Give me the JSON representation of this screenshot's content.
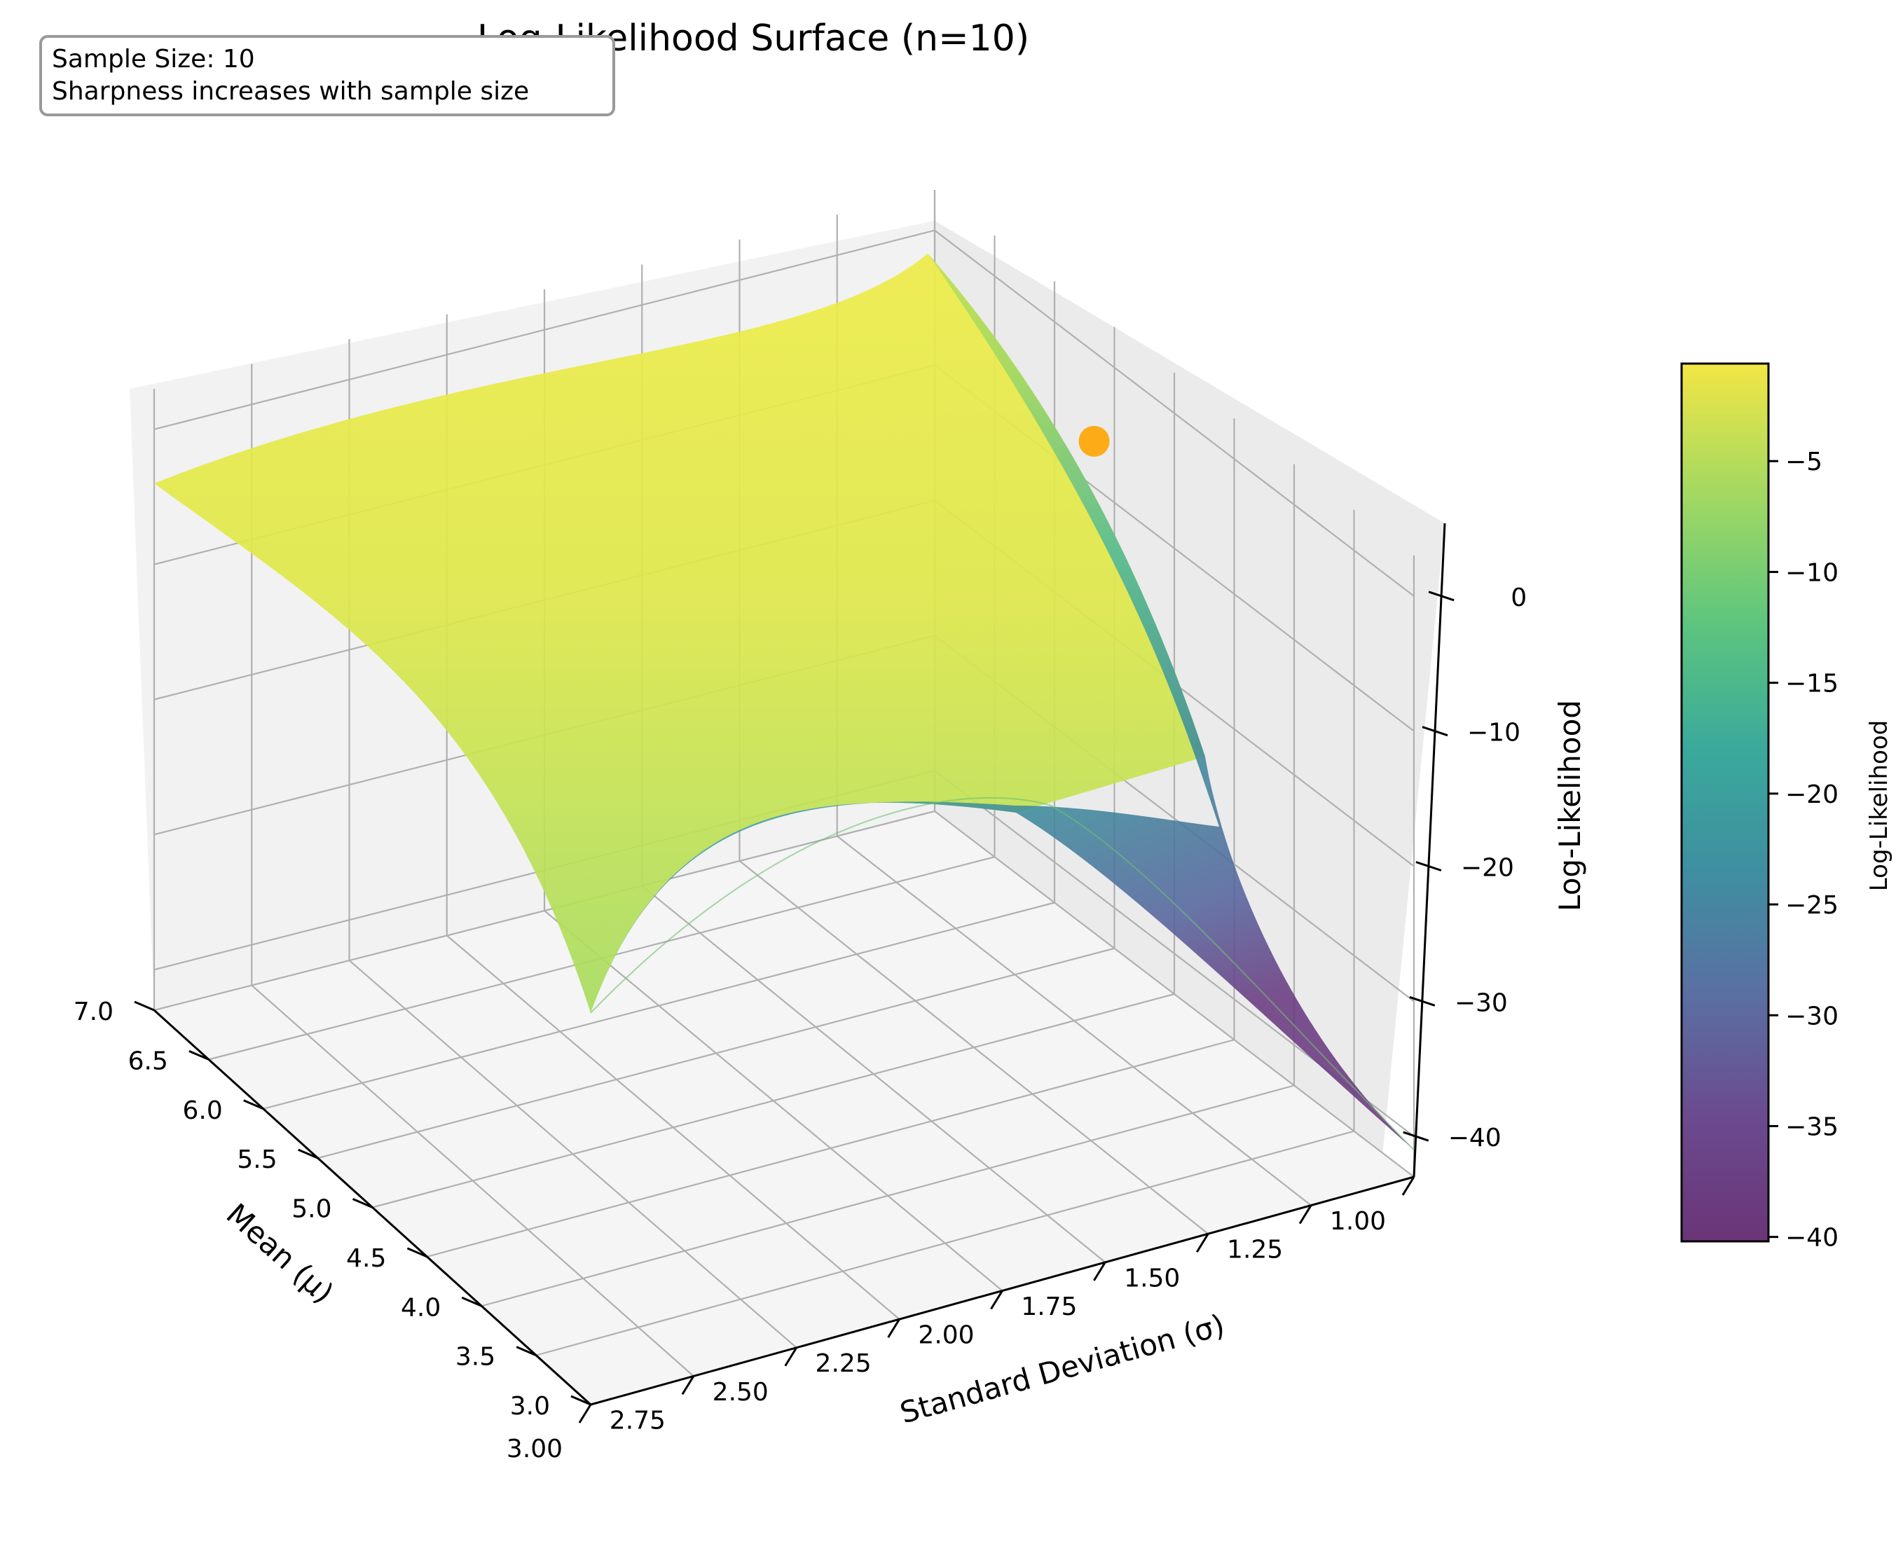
{
  "chart_data": {
    "type": "surface3d",
    "title": "Log-Likelihood Surface (n=10)",
    "annotation": {
      "lines": [
        "Sample Size: 10",
        "Sharpness increases with sample size"
      ]
    },
    "xlabel": "Standard Deviation (σ)",
    "ylabel": "Mean (μ)",
    "zlabel": "Log-Likelihood",
    "x_ticks": [
      "1.00",
      "1.25",
      "1.50",
      "1.75",
      "2.00",
      "2.25",
      "2.50",
      "2.75",
      "3.00"
    ],
    "y_ticks": [
      "3.0",
      "3.5",
      "4.0",
      "4.5",
      "5.0",
      "5.5",
      "6.0",
      "6.5",
      "7.0"
    ],
    "z_ticks": [
      "0",
      "−10",
      "−20",
      "−30",
      "−40"
    ],
    "xlim": [
      1.0,
      3.0
    ],
    "ylim": [
      3.0,
      7.0
    ],
    "zlim": [
      -43,
      3
    ],
    "surface_corners": [
      {
        "sigma": 3.0,
        "mu": 7.0,
        "loglik": -4
      },
      {
        "sigma": 1.0,
        "mu": 7.0,
        "loglik": -1.5
      },
      {
        "sigma": 1.0,
        "mu": 3.0,
        "loglik": -41
      },
      {
        "sigma": 3.0,
        "mu": 3.0,
        "loglik": -14
      }
    ],
    "mle_point": {
      "sigma": 1.2,
      "mu": 5.0,
      "loglik": -0.5,
      "color": "#ffa500"
    },
    "colormap": "viridis",
    "colorbar": {
      "label": "Log-Likelihood",
      "ticks": [
        "−5",
        "−10",
        "−15",
        "−20",
        "−25",
        "−30",
        "−35",
        "−40"
      ],
      "range": [
        -40.2,
        -0.6
      ]
    },
    "grid": true,
    "colors": {
      "pane": "#f2f2f2",
      "grid": "#b0b0b0",
      "annotation_border": "#999999"
    }
  }
}
